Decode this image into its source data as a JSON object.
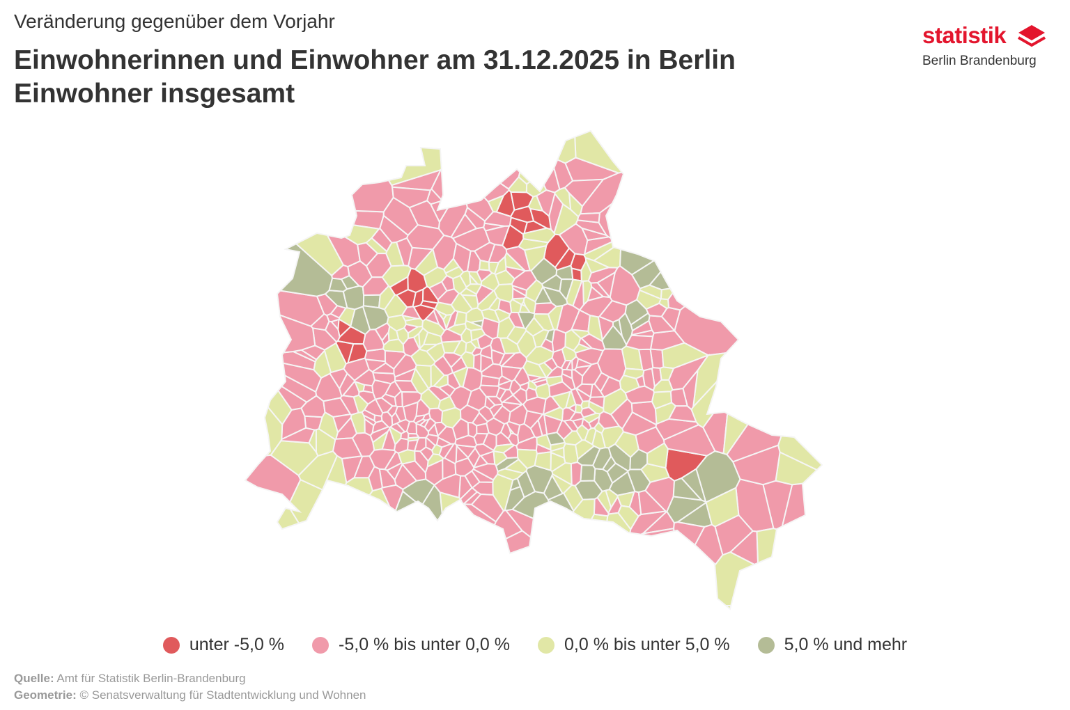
{
  "header": {
    "subtitle": "Veränderung gegenüber dem Vorjahr",
    "title_line1": "Einwohnerinnen und Einwohner am 31.12.2025 in Berlin",
    "title_line2": "Einwohner insgesamt"
  },
  "logo": {
    "word": "statistik",
    "sub": "Berlin Brandenburg",
    "icon": "stacked-diamond-icon"
  },
  "colors": {
    "class_1": "#e05a5c",
    "class_2": "#f09aaa",
    "class_3": "#e1e7a6",
    "class_4": "#b4bc96",
    "no_data": "#f2f2f2",
    "border": "#f5f5f5"
  },
  "legend": [
    {
      "label": "unter -5,0 %",
      "color": "#e05a5c"
    },
    {
      "label": "-5,0 % bis unter 0,0 %",
      "color": "#f09aaa"
    },
    {
      "label": "0,0 % bis unter 5,0 %",
      "color": "#e1e7a6"
    },
    {
      "label": "5,0 % und mehr",
      "color": "#b4bc96"
    }
  ],
  "source": {
    "label1": "Quelle:",
    "text1": "Amt für Statistik Berlin-Brandenburg",
    "label2": "Geometrie:",
    "text2": "© Senatsverwaltung für Stadtentwicklung und Wohnen"
  }
}
